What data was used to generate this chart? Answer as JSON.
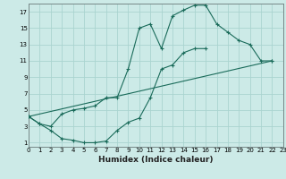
{
  "xlabel": "Humidex (Indice chaleur)",
  "bg_color": "#cceae7",
  "grid_color": "#aad4d0",
  "line_color": "#1a6b5a",
  "lines": [
    {
      "x": [
        0,
        1,
        2,
        3,
        4,
        5,
        6,
        7,
        8,
        9,
        10,
        11,
        12,
        13,
        14,
        15,
        16,
        17,
        18,
        19,
        20,
        21,
        22
      ],
      "y": [
        4.2,
        3.3,
        3.0,
        4.5,
        5.0,
        5.2,
        5.5,
        6.5,
        6.5,
        10.0,
        15.0,
        15.5,
        12.5,
        16.5,
        17.2,
        17.8,
        17.8,
        15.5,
        14.5,
        13.5,
        13.0,
        11.0,
        11.0
      ]
    },
    {
      "x": [
        0,
        1,
        2,
        3,
        4,
        5,
        6,
        7,
        8,
        9,
        10,
        11,
        12,
        13,
        14,
        15,
        16
      ],
      "y": [
        4.2,
        3.3,
        2.5,
        1.5,
        1.3,
        1.0,
        1.0,
        1.2,
        2.5,
        3.5,
        4.0,
        6.5,
        10.0,
        10.5,
        12.0,
        12.5,
        12.5
      ]
    },
    {
      "x": [
        0,
        22
      ],
      "y": [
        4.2,
        11.0
      ]
    }
  ],
  "xlim": [
    0,
    23
  ],
  "ylim": [
    0.5,
    18
  ],
  "xticks": [
    0,
    1,
    2,
    3,
    4,
    5,
    6,
    7,
    8,
    9,
    10,
    11,
    12,
    13,
    14,
    15,
    16,
    17,
    18,
    19,
    20,
    21,
    22,
    23
  ],
  "yticks": [
    1,
    3,
    5,
    7,
    9,
    11,
    13,
    15,
    17
  ],
  "tick_fontsize": 5.0,
  "label_fontsize": 6.5
}
